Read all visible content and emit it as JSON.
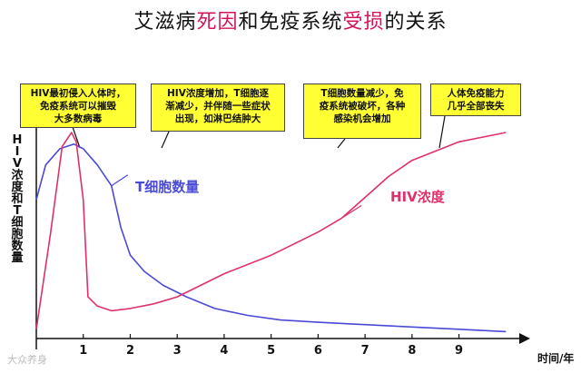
{
  "title": {
    "part1": "艾滋病",
    "part2": "死因",
    "part3": "和免疫系统",
    "part4": "受损",
    "part5": "的关系"
  },
  "callouts": [
    {
      "text": "HIV最初侵入人体时，\n免疫系统可以摧毁\n大多数病毒"
    },
    {
      "text": "HIV浓度增加，T细胞逐\n渐减少，并伴随一些症状\n出现，如淋巴结肿大"
    },
    {
      "text": "T细胞数量减少，免\n疫系统被破坏，各种\n感染机会增加"
    },
    {
      "text": "人体免疫能力\n几乎全部丧失"
    }
  ],
  "watermark": "大众养身",
  "colors": {
    "tcell": "#4a4ad8",
    "hiv": "#e0306a",
    "callout": "#ffff33"
  },
  "chart_data": {
    "type": "line",
    "ylabel": "HIV浓度和T细胞数量",
    "xlabel": "时间/年",
    "x_ticks": [
      "1",
      "2",
      "3",
      "4",
      "5",
      "6",
      "7",
      "8",
      "9"
    ],
    "xlim": [
      0,
      10.4
    ],
    "ylim": [
      0,
      100
    ],
    "series": [
      {
        "name": "T细胞数量",
        "x": [
          0,
          0.2,
          0.5,
          0.8,
          1.0,
          1.3,
          1.6,
          1.8,
          2.0,
          2.3,
          2.7,
          3.2,
          3.8,
          4.5,
          5.2,
          6.0,
          7.0,
          8.0,
          9.0,
          10.0
        ],
        "y": [
          60,
          75,
          82,
          84,
          82,
          75,
          66,
          48,
          36,
          29,
          23,
          18,
          13,
          10,
          8,
          7,
          6,
          5,
          4,
          3
        ]
      },
      {
        "name": "HIV浓度",
        "x": [
          0,
          0.3,
          0.55,
          0.75,
          0.85,
          1.0,
          1.1,
          1.3,
          1.6,
          2.0,
          2.5,
          3.0,
          3.5,
          4.0,
          5.0,
          6.0,
          6.5,
          7.0,
          7.5,
          8.0,
          9.0,
          10.0
        ],
        "y": [
          4,
          45,
          83,
          89,
          85,
          60,
          18,
          14,
          12,
          13,
          15,
          18,
          23,
          28,
          36,
          46,
          52,
          61,
          70,
          77,
          85,
          89
        ]
      }
    ]
  }
}
